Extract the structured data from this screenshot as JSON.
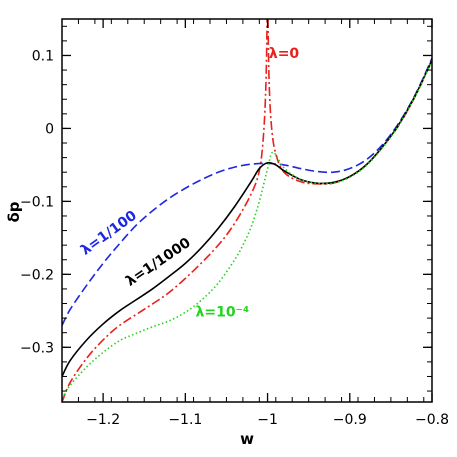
{
  "chart_data": {
    "type": "line",
    "xlabel": "w",
    "ylabel": "δp",
    "xlim": [
      -1.25,
      -0.8
    ],
    "ylim": [
      -0.375,
      0.15
    ],
    "x_ticks": [
      -1.2,
      -1.1,
      -1.0,
      -0.9,
      -0.8
    ],
    "x_tick_labels": [
      "−1.2",
      "−1.1",
      "−1",
      "−0.9",
      "−0.8"
    ],
    "y_ticks": [
      0.1,
      0,
      -0.1,
      -0.2,
      -0.3
    ],
    "y_tick_labels": [
      "0.1",
      "0",
      "−0.1",
      "−0.2",
      "−0.3"
    ],
    "grid": false,
    "series": [
      {
        "name": "λ=0",
        "color": "#e8211c",
        "dash": "dashdot",
        "segments": [
          [
            [
              -1.25,
              -0.375
            ],
            [
              -1.24,
              -0.348
            ],
            [
              -1.22,
              -0.315
            ],
            [
              -1.2,
              -0.29
            ],
            [
              -1.18,
              -0.27
            ],
            [
              -1.15,
              -0.248
            ],
            [
              -1.12,
              -0.225
            ],
            [
              -1.09,
              -0.195
            ],
            [
              -1.06,
              -0.16
            ],
            [
              -1.04,
              -0.13
            ],
            [
              -1.02,
              -0.09
            ],
            [
              -1.01,
              -0.058
            ],
            [
              -1.005,
              -0.01
            ],
            [
              -1.002,
              0.06
            ],
            [
              -1.0005,
              0.15
            ]
          ],
          [
            [
              -0.9995,
              0.15
            ],
            [
              -0.998,
              0.06
            ],
            [
              -0.995,
              0.0
            ],
            [
              -0.99,
              -0.035
            ],
            [
              -0.98,
              -0.06
            ],
            [
              -0.96,
              -0.073
            ],
            [
              -0.94,
              -0.076
            ],
            [
              -0.92,
              -0.075
            ],
            [
              -0.9,
              -0.066
            ],
            [
              -0.88,
              -0.05
            ],
            [
              -0.86,
              -0.025
            ],
            [
              -0.84,
              0.005
            ],
            [
              -0.82,
              0.045
            ],
            [
              -0.8,
              0.093
            ]
          ]
        ]
      },
      {
        "name": "λ=1/100",
        "color": "#1d28e0",
        "dash": "dashed",
        "segments": [
          [
            [
              -1.25,
              -0.27
            ],
            [
              -1.24,
              -0.248
            ],
            [
              -1.22,
              -0.215
            ],
            [
              -1.2,
              -0.185
            ],
            [
              -1.18,
              -0.158
            ],
            [
              -1.16,
              -0.133
            ],
            [
              -1.14,
              -0.113
            ],
            [
              -1.12,
              -0.096
            ],
            [
              -1.1,
              -0.082
            ],
            [
              -1.08,
              -0.07
            ],
            [
              -1.06,
              -0.06
            ],
            [
              -1.04,
              -0.053
            ],
            [
              -1.02,
              -0.049
            ],
            [
              -1.0,
              -0.048
            ],
            [
              -0.98,
              -0.05
            ],
            [
              -0.96,
              -0.055
            ],
            [
              -0.94,
              -0.059
            ],
            [
              -0.92,
              -0.06
            ],
            [
              -0.9,
              -0.055
            ],
            [
              -0.88,
              -0.043
            ],
            [
              -0.86,
              -0.022
            ],
            [
              -0.84,
              0.008
            ],
            [
              -0.82,
              0.047
            ],
            [
              -0.8,
              0.096
            ]
          ]
        ]
      },
      {
        "name": "λ=1/1000",
        "color": "#000000",
        "dash": "solid",
        "segments": [
          [
            [
              -1.25,
              -0.34
            ],
            [
              -1.24,
              -0.318
            ],
            [
              -1.22,
              -0.29
            ],
            [
              -1.2,
              -0.268
            ],
            [
              -1.18,
              -0.25
            ],
            [
              -1.16,
              -0.235
            ],
            [
              -1.14,
              -0.22
            ],
            [
              -1.12,
              -0.203
            ],
            [
              -1.1,
              -0.185
            ],
            [
              -1.08,
              -0.163
            ],
            [
              -1.06,
              -0.137
            ],
            [
              -1.04,
              -0.107
            ],
            [
              -1.02,
              -0.073
            ],
            [
              -1.01,
              -0.055
            ],
            [
              -1.0,
              -0.047
            ],
            [
              -0.99,
              -0.05
            ],
            [
              -0.98,
              -0.058
            ],
            [
              -0.96,
              -0.07
            ],
            [
              -0.94,
              -0.075
            ],
            [
              -0.92,
              -0.074
            ],
            [
              -0.9,
              -0.066
            ],
            [
              -0.88,
              -0.05
            ],
            [
              -0.86,
              -0.025
            ],
            [
              -0.84,
              0.006
            ],
            [
              -0.82,
              0.046
            ],
            [
              -0.8,
              0.094
            ]
          ]
        ]
      },
      {
        "name": "λ=10⁻⁴",
        "color": "#22d41e",
        "dash": "dotted",
        "segments": [
          [
            [
              -1.25,
              -0.37
            ],
            [
              -1.24,
              -0.352
            ],
            [
              -1.22,
              -0.327
            ],
            [
              -1.2,
              -0.307
            ],
            [
              -1.18,
              -0.291
            ],
            [
              -1.16,
              -0.281
            ],
            [
              -1.14,
              -0.272
            ],
            [
              -1.12,
              -0.264
            ],
            [
              -1.1,
              -0.252
            ],
            [
              -1.08,
              -0.235
            ],
            [
              -1.06,
              -0.212
            ],
            [
              -1.04,
              -0.18
            ],
            [
              -1.03,
              -0.16
            ],
            [
              -1.02,
              -0.135
            ],
            [
              -1.01,
              -0.1
            ],
            [
              -1.0,
              -0.055
            ],
            [
              -0.995,
              -0.034
            ],
            [
              -0.99,
              -0.036
            ],
            [
              -0.98,
              -0.054
            ],
            [
              -0.96,
              -0.07
            ],
            [
              -0.94,
              -0.075
            ],
            [
              -0.92,
              -0.075
            ],
            [
              -0.9,
              -0.067
            ],
            [
              -0.88,
              -0.051
            ],
            [
              -0.86,
              -0.026
            ],
            [
              -0.84,
              0.005
            ],
            [
              -0.82,
              0.045
            ],
            [
              -0.8,
              0.093
            ]
          ]
        ]
      }
    ],
    "annotations": [
      {
        "text": "λ=0",
        "x": -0.98,
        "y": 0.0968,
        "color": "#e8211c",
        "rotate": 0
      },
      {
        "text": "λ=1/100",
        "x": -1.19,
        "y": -0.148,
        "color": "#1d28e0",
        "rotate": -36
      },
      {
        "text": "λ=1/1000",
        "x": -1.13,
        "y": -0.188,
        "color": "#000000",
        "rotate": -34
      },
      {
        "text": "λ=10⁻⁴",
        "x": -1.055,
        "y": -0.258,
        "color": "#22d41e",
        "rotate": 0
      }
    ]
  }
}
